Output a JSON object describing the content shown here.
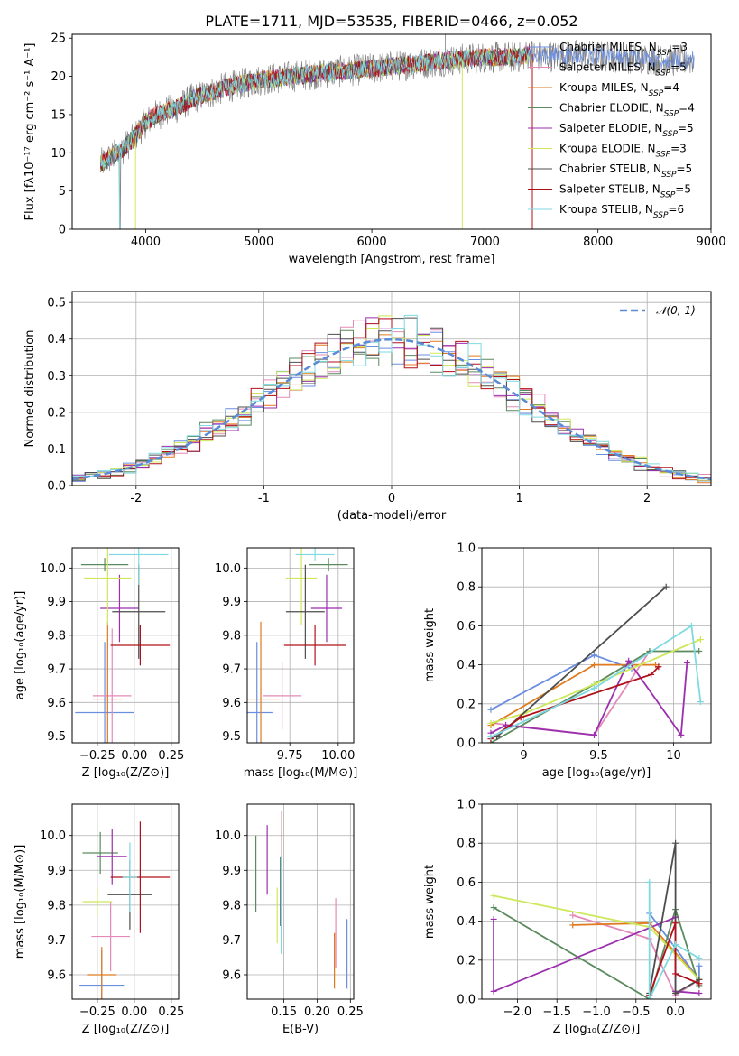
{
  "page_title": "PLATE=1711, MJD=53535, FIBERID=0466, z=0.052",
  "series": [
    {
      "label": "Chabrier MILES, N",
      "sub": "SSP",
      "tail": "=3",
      "color": "#6a8ee0"
    },
    {
      "label": "Salpeter MILES, N",
      "sub": "SSP",
      "tail": "=5",
      "color": "#e48ab8"
    },
    {
      "label": "Kroupa MILES, N",
      "sub": "SSP",
      "tail": "=4",
      "color": "#e07a1f"
    },
    {
      "label": "Chabrier ELODIE, N",
      "sub": "SSP",
      "tail": "=4",
      "color": "#5a8a5e"
    },
    {
      "label": "Salpeter ELODIE, N",
      "sub": "SSP",
      "tail": "=5",
      "color": "#9b2fae"
    },
    {
      "label": "Kroupa ELODIE, N",
      "sub": "SSP",
      "tail": "=3",
      "color": "#cde85a"
    },
    {
      "label": "Chabrier STELIB, N",
      "sub": "SSP",
      "tail": "=5",
      "color": "#4d4d4d"
    },
    {
      "label": "Salpeter STELIB, N",
      "sub": "SSP",
      "tail": "=5",
      "color": "#b0101a"
    },
    {
      "label": "Kroupa STELIB, N",
      "sub": "SSP",
      "tail": "=6",
      "color": "#7fd9e0"
    }
  ],
  "chart_data": [
    {
      "id": "spectrum",
      "type": "line",
      "title": "PLATE=1711, MJD=53535, FIBERID=0466, z=0.052",
      "xlabel": "wavelength [Angstrom, rest frame]",
      "ylabel": "Flux [fλ10⁻¹⁷ erg cm⁻² s⁻¹ A⁻¹]",
      "xlim": [
        3350,
        9000
      ],
      "ylim": [
        0,
        25.5
      ],
      "xticks": [
        4000,
        5000,
        6000,
        7000,
        8000,
        9000
      ],
      "yticks": [
        0,
        5,
        10,
        15,
        20,
        25
      ],
      "continuum_x": [
        3600,
        3700,
        3800,
        3900,
        4000,
        4100,
        4200,
        4300,
        4400,
        4500,
        4700,
        5000,
        5300,
        5600,
        6000,
        6300,
        6600,
        7000,
        7300,
        7400
      ],
      "continuum_y": [
        8.5,
        9.5,
        10.5,
        12,
        14,
        15,
        15.5,
        16,
        17,
        17.5,
        18.5,
        19.5,
        20,
        20.5,
        21,
        21.5,
        22,
        22.5,
        22.5,
        23
      ],
      "observed_extra_x": [
        7500,
        7800,
        8100,
        8400,
        8700,
        8850
      ],
      "observed_extra_y": [
        22.5,
        22.8,
        22.6,
        22.3,
        22.0,
        22.2
      ],
      "legend_position": "upper right",
      "grid": false
    },
    {
      "id": "residual-histogram",
      "type": "histogram",
      "xlabel": "(data-model)/error",
      "ylabel": "Normed distribution",
      "xlim": [
        -2.5,
        2.5
      ],
      "ylim": [
        0,
        0.53
      ],
      "xticks": [
        -2,
        -1,
        0,
        1,
        2
      ],
      "yticks": [
        0.0,
        0.1,
        0.2,
        0.3,
        0.4,
        0.5
      ],
      "bin_width": 0.1,
      "reference_curve": "𝒩(0, 1)",
      "legend_position": "upper right",
      "grid": true
    },
    {
      "id": "age-vs-Z",
      "type": "scatter-errorbars",
      "xlabel": "Z [log₁₀(Z/Z⊙)]",
      "ylabel": "age  [log₁₀(age/yr)]",
      "xlim": [
        -0.42,
        0.3
      ],
      "ylim": [
        9.48,
        10.06
      ],
      "xticks": [
        -0.25,
        0.0,
        0.25
      ],
      "xticklabels": [
        "−0.25",
        "0.00",
        "0.25"
      ],
      "yticks": [
        9.5,
        9.6,
        9.7,
        9.8,
        9.9,
        10.0
      ],
      "points": [
        {
          "x": -0.2,
          "xerr": 0.2,
          "y": 9.57,
          "yerr": 0.21,
          "series": 0
        },
        {
          "x": -0.15,
          "xerr": 0.13,
          "y": 9.62,
          "yerr": 0.2,
          "series": 1
        },
        {
          "x": -0.18,
          "xerr": 0.1,
          "y": 9.61,
          "yerr": 0.23,
          "series": 2
        },
        {
          "x": -0.2,
          "xerr": 0.16,
          "y": 10.01,
          "yerr": 0.02,
          "series": 3
        },
        {
          "x": -0.1,
          "xerr": 0.13,
          "y": 9.88,
          "yerr": 0.1,
          "series": 4
        },
        {
          "x": -0.18,
          "xerr": 0.16,
          "y": 9.97,
          "yerr": 0.14,
          "series": 5
        },
        {
          "x": 0.03,
          "xerr": 0.18,
          "y": 9.87,
          "yerr": 0.14,
          "series": 6
        },
        {
          "x": 0.04,
          "xerr": 0.2,
          "y": 9.77,
          "yerr": 0.06,
          "series": 7
        },
        {
          "x": 0.03,
          "xerr": 0.2,
          "y": 10.04,
          "yerr": 0.09,
          "series": 8
        }
      ],
      "grid": true
    },
    {
      "id": "age-vs-mass",
      "type": "scatter-errorbars",
      "xlabel": "mass [log₁₀(M/M⊙)]",
      "ylabel": "",
      "xlim": [
        9.53,
        10.08
      ],
      "ylim": [
        9.48,
        10.06
      ],
      "xticks": [
        9.75,
        10.0
      ],
      "xticklabels": [
        "9.75",
        "10.00"
      ],
      "yticks": [
        9.5,
        9.6,
        9.7,
        9.8,
        9.9,
        10.0
      ],
      "points": [
        {
          "x": 9.58,
          "xerr": 0.08,
          "y": 9.57,
          "yerr": 0.21,
          "series": 0
        },
        {
          "x": 9.71,
          "xerr": 0.1,
          "y": 9.62,
          "yerr": 0.1,
          "series": 1
        },
        {
          "x": 9.6,
          "xerr": 0.1,
          "y": 9.61,
          "yerr": 0.23,
          "series": 2
        },
        {
          "x": 9.95,
          "xerr": 0.1,
          "y": 10.01,
          "yerr": 0.02,
          "series": 3
        },
        {
          "x": 9.94,
          "xerr": 0.08,
          "y": 9.88,
          "yerr": 0.1,
          "series": 4
        },
        {
          "x": 9.81,
          "xerr": 0.08,
          "y": 9.97,
          "yerr": 0.14,
          "series": 5
        },
        {
          "x": 9.83,
          "xerr": 0.1,
          "y": 9.87,
          "yerr": 0.14,
          "series": 6
        },
        {
          "x": 9.88,
          "xerr": 0.16,
          "y": 9.77,
          "yerr": 0.06,
          "series": 7
        },
        {
          "x": 9.88,
          "xerr": 0.1,
          "y": 10.04,
          "yerr": 0.02,
          "series": 8
        }
      ],
      "grid": true
    },
    {
      "id": "massweight-vs-age",
      "type": "line",
      "xlabel": "age  [log₁₀(age/yr)]",
      "ylabel": "mass weight",
      "xlim": [
        8.72,
        10.25
      ],
      "ylim": [
        0,
        1.0
      ],
      "xticks": [
        9.0,
        9.5,
        10.0
      ],
      "yticks": [
        0.0,
        0.2,
        0.4,
        0.6,
        0.8,
        1.0
      ],
      "series_points": [
        {
          "series": 0,
          "x": [
            8.78,
            9.47,
            9.72
          ],
          "y": [
            0.17,
            0.45,
            0.38
          ]
        },
        {
          "series": 1,
          "x": [
            8.8,
            9.47,
            9.84
          ],
          "y": [
            0.1,
            0.04,
            0.47
          ]
        },
        {
          "series": 2,
          "x": [
            8.78,
            9.47,
            9.88
          ],
          "y": [
            0.09,
            0.4,
            0.4
          ]
        },
        {
          "series": 3,
          "x": [
            8.78,
            9.47,
            9.84,
            10.17
          ],
          "y": [
            0.0,
            0.3,
            0.47,
            0.47
          ]
        },
        {
          "series": 4,
          "x": [
            8.78,
            8.88,
            9.47,
            9.7,
            10.05,
            10.09
          ],
          "y": [
            0.05,
            0.09,
            0.04,
            0.42,
            0.04,
            0.41
          ]
        },
        {
          "series": 5,
          "x": [
            8.78,
            9.0,
            9.47,
            10.18
          ],
          "y": [
            0.1,
            0.15,
            0.3,
            0.53
          ]
        },
        {
          "series": 6,
          "x": [
            8.82,
            9.95
          ],
          "y": [
            0.03,
            0.8
          ]
        },
        {
          "series": 7,
          "x": [
            8.78,
            8.98,
            9.85,
            9.9
          ],
          "y": [
            0.02,
            0.13,
            0.35,
            0.39
          ]
        },
        {
          "series": 8,
          "x": [
            8.78,
            9.47,
            10.12,
            10.18
          ],
          "y": [
            0.03,
            0.28,
            0.6,
            0.21
          ]
        }
      ],
      "grid": true
    },
    {
      "id": "mass-vs-Z",
      "type": "scatter-errorbars",
      "xlabel": "Z [log₁₀(Z/Z⊙)]",
      "ylabel": "mass [log₁₀(M/M⊙)]",
      "xlim": [
        -0.42,
        0.3
      ],
      "ylim": [
        9.53,
        10.09
      ],
      "xticks": [
        -0.25,
        0.0,
        0.25
      ],
      "xticklabels": [
        "−0.25",
        "0.00",
        "0.25"
      ],
      "yticks": [
        9.6,
        9.7,
        9.8,
        9.9,
        10.0
      ],
      "points": [
        {
          "x": -0.22,
          "xerr": 0.15,
          "y": 9.57,
          "yerr": 0.1,
          "series": 0
        },
        {
          "x": -0.16,
          "xerr": 0.13,
          "y": 9.71,
          "yerr": 0.1,
          "series": 1
        },
        {
          "x": -0.22,
          "xerr": 0.1,
          "y": 9.6,
          "yerr": 0.08,
          "series": 2
        },
        {
          "x": -0.23,
          "xerr": 0.12,
          "y": 9.95,
          "yerr": 0.06,
          "series": 3
        },
        {
          "x": -0.15,
          "xerr": 0.1,
          "y": 9.94,
          "yerr": 0.08,
          "series": 4
        },
        {
          "x": -0.25,
          "xerr": 0.1,
          "y": 9.81,
          "yerr": 0.04,
          "series": 5
        },
        {
          "x": -0.03,
          "xerr": 0.15,
          "y": 9.83,
          "yerr": 0.1,
          "series": 6
        },
        {
          "x": 0.04,
          "xerr": 0.2,
          "y": 9.88,
          "yerr": 0.16,
          "series": 7
        },
        {
          "x": -0.03,
          "xerr": 0.05,
          "y": 9.88,
          "yerr": 0.1,
          "series": 8
        }
      ],
      "grid": true
    },
    {
      "id": "mass-vs-EBV",
      "type": "errorbars",
      "xlabel": "E(B-V)",
      "ylabel": "",
      "xlim": [
        0.095,
        0.255
      ],
      "ylim": [
        9.53,
        10.09
      ],
      "xticks": [
        0.15,
        0.2,
        0.25
      ],
      "xticklabels": [
        "0.15",
        "0.20",
        "0.25"
      ],
      "yticks": [
        9.6,
        9.7,
        9.8,
        9.9,
        10.0
      ],
      "points": [
        {
          "x": 0.245,
          "y": 9.66,
          "yerr": 0.1,
          "series": 0
        },
        {
          "x": 0.228,
          "y": 9.72,
          "yerr": 0.1,
          "series": 1
        },
        {
          "x": 0.226,
          "y": 9.64,
          "yerr": 0.08,
          "series": 2
        },
        {
          "x": 0.108,
          "y": 9.89,
          "yerr": 0.11,
          "series": 3
        },
        {
          "x": 0.125,
          "y": 9.93,
          "yerr": 0.1,
          "series": 4
        },
        {
          "x": 0.14,
          "y": 9.77,
          "yerr": 0.08,
          "series": 5
        },
        {
          "x": 0.145,
          "y": 9.84,
          "yerr": 0.1,
          "series": 6
        },
        {
          "x": 0.147,
          "y": 9.9,
          "yerr": 0.17,
          "series": 7
        },
        {
          "x": 0.146,
          "y": 9.8,
          "yerr": 0.14,
          "series": 8
        }
      ],
      "grid": true
    },
    {
      "id": "massweight-vs-Z",
      "type": "line",
      "xlabel": "Z [log₁₀(Z/Z⊙)]",
      "ylabel": "mass weight",
      "xlim": [
        -2.45,
        0.45
      ],
      "ylim": [
        0,
        1.0
      ],
      "xticks": [
        -2.0,
        -1.5,
        -1.0,
        -0.5,
        0.0
      ],
      "xticklabels": [
        "−2.0",
        "−1.5",
        "−1.0",
        "−0.5",
        "0.0"
      ],
      "yticks": [
        0.0,
        0.2,
        0.4,
        0.6,
        0.8,
        1.0
      ],
      "series_points": [
        {
          "series": 0,
          "x": [
            -0.33,
            0.3,
            0.3
          ],
          "y": [
            0.44,
            0.1,
            0.17
          ]
        },
        {
          "series": 1,
          "x": [
            -1.3,
            -0.33,
            0.0,
            0.3
          ],
          "y": [
            0.43,
            0.31,
            0.02,
            0.1
          ]
        },
        {
          "series": 2,
          "x": [
            -1.3,
            -0.33,
            0.3
          ],
          "y": [
            0.38,
            0.39,
            0.1
          ]
        },
        {
          "series": 3,
          "x": [
            -2.3,
            -0.33,
            0.0,
            0.3
          ],
          "y": [
            0.47,
            0.0,
            0.46,
            0.07
          ]
        },
        {
          "series": 4,
          "x": [
            -2.3,
            -2.3,
            0.0,
            0.0,
            0.3
          ],
          "y": [
            0.41,
            0.04,
            0.42,
            0.04,
            0.03
          ]
        },
        {
          "series": 5,
          "x": [
            -2.3,
            -0.33,
            0.3
          ],
          "y": [
            0.53,
            0.37,
            0.1
          ]
        },
        {
          "series": 6,
          "x": [
            -0.33,
            0.0,
            0.0,
            0.3
          ],
          "y": [
            0.03,
            0.8,
            0.03,
            0.1
          ]
        },
        {
          "series": 7,
          "x": [
            -0.33,
            0.0,
            0.0,
            0.3
          ],
          "y": [
            0.02,
            0.39,
            0.13,
            0.08
          ]
        },
        {
          "series": 8,
          "x": [
            -0.33,
            -0.33,
            0.0,
            0.3
          ],
          "y": [
            0.6,
            0.0,
            0.28,
            0.21
          ]
        }
      ],
      "grid": true
    }
  ]
}
